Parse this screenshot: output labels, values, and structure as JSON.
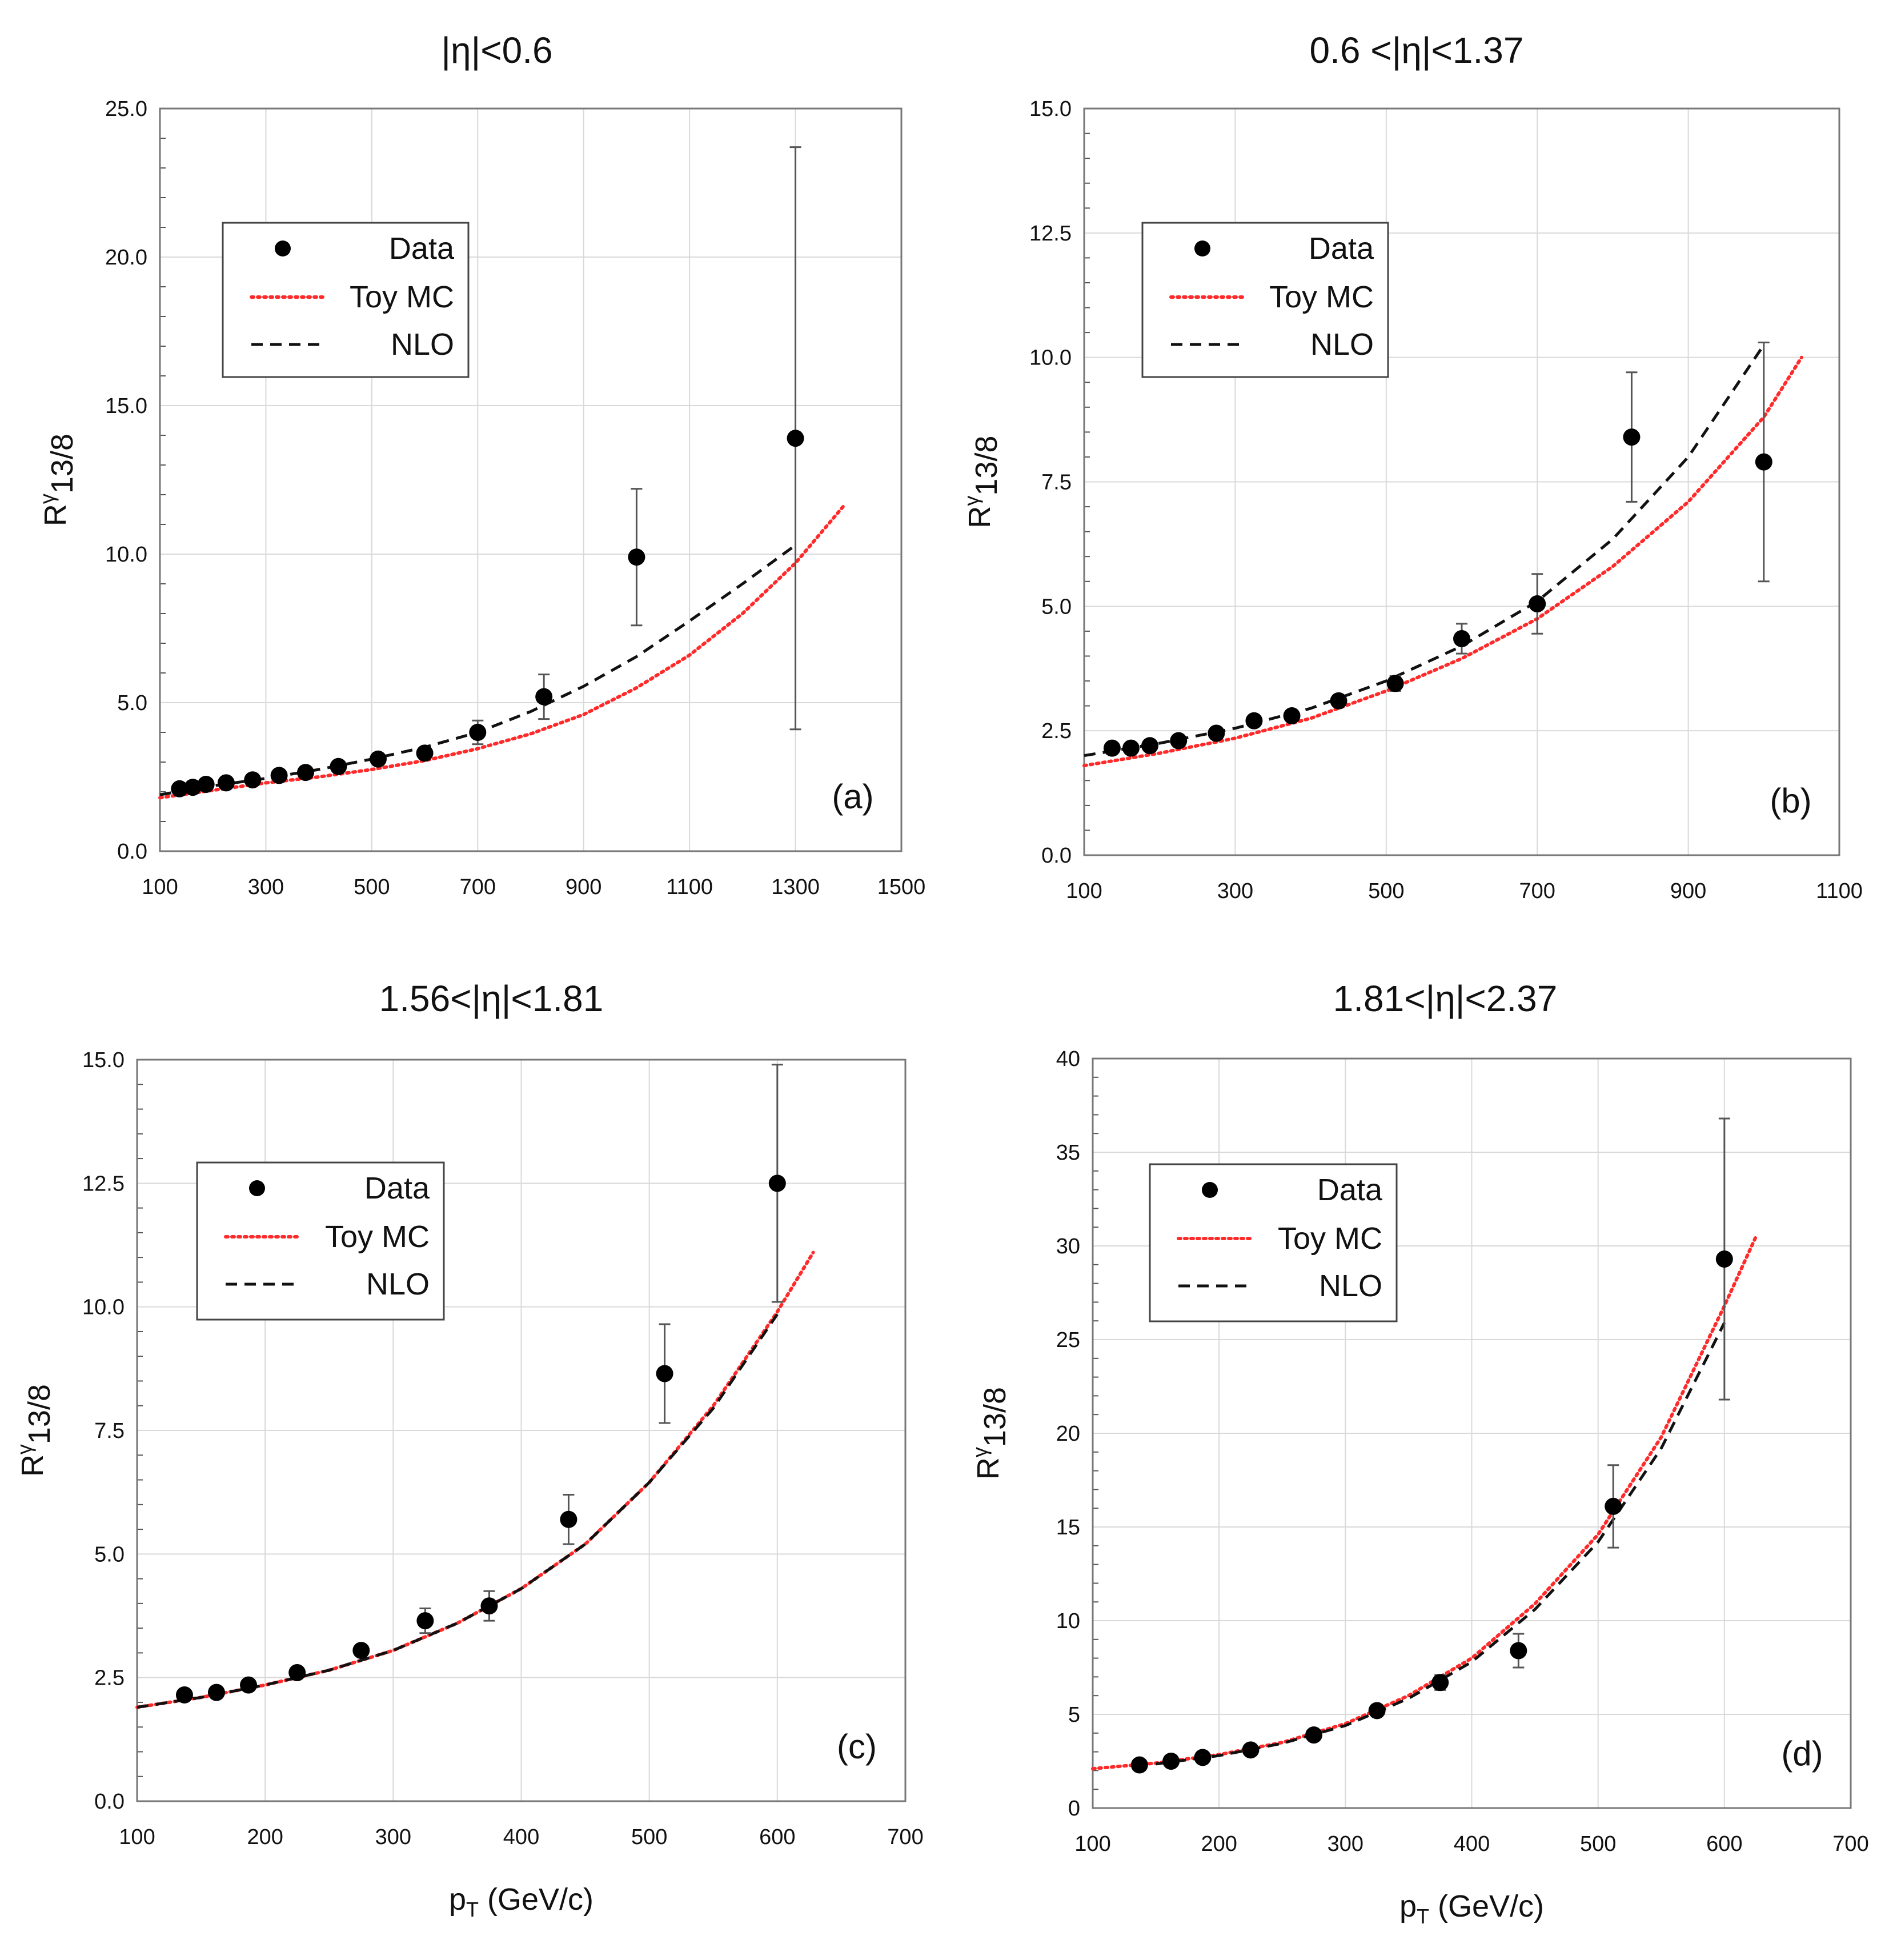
{
  "figure": {
    "xlabel": "p_T (GeV/c)"
  },
  "chart_data": [
    {
      "type": "scatter",
      "title": "|η|<0.6",
      "panel_label": "(a)",
      "xlabel": "",
      "ylabel": "Rγ13/8",
      "xlim": [
        100,
        1500
      ],
      "ylim": [
        0,
        25
      ],
      "xticks": [
        "100",
        "300",
        "500",
        "700",
        "900",
        "1100",
        "1300",
        "1500"
      ],
      "yticks": [
        "0.0",
        "5.0",
        "10.0",
        "15.0",
        "20.0",
        "25.0"
      ],
      "grid": true,
      "legend": {
        "position": "upper-left",
        "entries": [
          "Data",
          "Toy MC",
          "NLO"
        ]
      },
      "series": [
        {
          "name": "Data",
          "kind": "points-with-errors",
          "x": [
            137,
            162,
            187,
            225,
            275,
            325,
            375,
            437,
            512,
            600,
            700,
            825,
            1000,
            1300
          ],
          "y": [
            2.1,
            2.15,
            2.25,
            2.3,
            2.4,
            2.55,
            2.65,
            2.85,
            3.1,
            3.3,
            4.0,
            5.2,
            9.9,
            13.9
          ],
          "err_low": [
            0.05,
            0.05,
            0.05,
            0.05,
            0.05,
            0.05,
            0.05,
            0.1,
            0.1,
            0.15,
            0.4,
            0.75,
            2.3,
            9.8
          ],
          "err_high": [
            0.05,
            0.05,
            0.05,
            0.05,
            0.05,
            0.05,
            0.05,
            0.1,
            0.1,
            0.15,
            0.4,
            0.75,
            2.3,
            9.8
          ]
        },
        {
          "name": "Toy MC",
          "kind": "dotted-line",
          "x": [
            100,
            200,
            300,
            400,
            500,
            600,
            700,
            800,
            900,
            1000,
            1100,
            1200,
            1300,
            1390
          ],
          "y": [
            1.8,
            2.05,
            2.3,
            2.5,
            2.75,
            3.05,
            3.45,
            3.95,
            4.6,
            5.5,
            6.6,
            8.0,
            9.7,
            11.6
          ]
        },
        {
          "name": "NLO",
          "kind": "dashed-line",
          "x": [
            100,
            200,
            300,
            400,
            500,
            600,
            700,
            800,
            900,
            1000,
            1100,
            1200,
            1300
          ],
          "y": [
            1.9,
            2.2,
            2.45,
            2.75,
            3.1,
            3.5,
            4.0,
            4.7,
            5.55,
            6.55,
            7.75,
            9.0,
            10.3
          ]
        }
      ]
    },
    {
      "type": "scatter",
      "title": "0.6 <|η|<1.37",
      "panel_label": "(b)",
      "xlabel": "",
      "ylabel": "Rγ13/8",
      "xlim": [
        100,
        1100
      ],
      "ylim": [
        0,
        15
      ],
      "xticks": [
        "100",
        "300",
        "500",
        "700",
        "900",
        "1100"
      ],
      "yticks": [
        "0.0",
        "2.5",
        "5.0",
        "7.5",
        "10.0",
        "12.5",
        "15.0"
      ],
      "grid": true,
      "legend": {
        "position": "upper-left",
        "entries": [
          "Data",
          "Toy MC",
          "NLO"
        ]
      },
      "series": [
        {
          "name": "Data",
          "kind": "points-with-errors",
          "x": [
            137,
            162,
            187,
            225,
            275,
            325,
            375,
            437,
            512,
            600,
            700,
            825,
            1000
          ],
          "y": [
            2.15,
            2.15,
            2.2,
            2.3,
            2.45,
            2.7,
            2.8,
            3.1,
            3.45,
            4.35,
            5.05,
            8.4,
            7.9
          ],
          "err_low": [
            0.05,
            0.05,
            0.05,
            0.05,
            0.05,
            0.05,
            0.05,
            0.1,
            0.15,
            0.3,
            0.6,
            1.3,
            2.4
          ],
          "err_high": [
            0.05,
            0.05,
            0.05,
            0.05,
            0.05,
            0.05,
            0.05,
            0.1,
            0.15,
            0.3,
            0.6,
            1.3,
            2.4
          ]
        },
        {
          "name": "Toy MC",
          "kind": "dotted-line",
          "x": [
            100,
            200,
            300,
            400,
            500,
            600,
            700,
            800,
            900,
            1000,
            1050
          ],
          "y": [
            1.8,
            2.05,
            2.35,
            2.75,
            3.3,
            3.95,
            4.75,
            5.8,
            7.1,
            8.8,
            10.0
          ]
        },
        {
          "name": "NLO",
          "kind": "dashed-line",
          "x": [
            100,
            200,
            300,
            400,
            500,
            600,
            700,
            800,
            900,
            1000
          ],
          "y": [
            2.0,
            2.25,
            2.55,
            2.95,
            3.5,
            4.2,
            5.1,
            6.35,
            8.0,
            10.25
          ]
        }
      ]
    },
    {
      "type": "scatter",
      "title": "1.56<|η|<1.81",
      "panel_label": "(c)",
      "xlabel": "p_T (GeV/c)",
      "ylabel": "Rγ13/8",
      "xlim": [
        100,
        700
      ],
      "ylim": [
        0,
        15
      ],
      "xticks": [
        "100",
        "200",
        "300",
        "400",
        "500",
        "600",
        "700"
      ],
      "yticks": [
        "0.0",
        "2.5",
        "5.0",
        "7.5",
        "10.0",
        "12.5",
        "15.0"
      ],
      "grid": true,
      "legend": {
        "position": "upper-left",
        "entries": [
          "Data",
          "Toy MC",
          "NLO"
        ]
      },
      "series": [
        {
          "name": "Data",
          "kind": "points-with-errors",
          "x": [
            137,
            162,
            187,
            225,
            275,
            325,
            375,
            437,
            512,
            600
          ],
          "y": [
            2.15,
            2.2,
            2.35,
            2.6,
            3.05,
            3.65,
            3.95,
            5.7,
            8.65,
            12.5
          ],
          "err_low": [
            0.05,
            0.05,
            0.05,
            0.1,
            0.1,
            0.25,
            0.3,
            0.5,
            1.0,
            2.4
          ],
          "err_high": [
            0.05,
            0.05,
            0.05,
            0.1,
            0.1,
            0.25,
            0.3,
            0.5,
            1.0,
            2.4
          ]
        },
        {
          "name": "Toy MC",
          "kind": "dotted-line",
          "x": [
            100,
            150,
            200,
            250,
            300,
            350,
            400,
            450,
            500,
            550,
            600,
            628
          ],
          "y": [
            1.9,
            2.1,
            2.35,
            2.65,
            3.05,
            3.6,
            4.3,
            5.2,
            6.45,
            8.0,
            9.9,
            11.1
          ]
        },
        {
          "name": "NLO",
          "kind": "dashed-line",
          "x": [
            100,
            150,
            200,
            250,
            300,
            350,
            400,
            450,
            500,
            550,
            600
          ],
          "y": [
            1.9,
            2.1,
            2.35,
            2.65,
            3.05,
            3.6,
            4.3,
            5.2,
            6.45,
            7.95,
            9.85
          ]
        }
      ]
    },
    {
      "type": "scatter",
      "title": "1.81<|η|<2.37",
      "panel_label": "(d)",
      "xlabel": "p_T (GeV/c)",
      "ylabel": "Rγ13/8",
      "xlim": [
        100,
        700
      ],
      "ylim": [
        0,
        40
      ],
      "xticks": [
        "100",
        "200",
        "300",
        "400",
        "500",
        "600",
        "700"
      ],
      "yticks": [
        "0",
        "5",
        "10",
        "15",
        "20",
        "25",
        "30",
        "35",
        "40"
      ],
      "grid": true,
      "legend": {
        "position": "upper-left",
        "entries": [
          "Data",
          "Toy MC",
          "NLO"
        ]
      },
      "series": [
        {
          "name": "Data",
          "kind": "points-with-errors",
          "x": [
            137,
            162,
            187,
            225,
            275,
            325,
            375,
            437,
            512,
            600
          ],
          "y": [
            2.3,
            2.5,
            2.7,
            3.1,
            3.9,
            5.2,
            6.7,
            8.4,
            16.1,
            29.3
          ],
          "err_low": [
            0.1,
            0.1,
            0.1,
            0.1,
            0.2,
            0.3,
            0.4,
            0.9,
            2.2,
            7.5
          ],
          "err_high": [
            0.1,
            0.1,
            0.1,
            0.1,
            0.2,
            0.3,
            0.4,
            0.9,
            2.2,
            7.5
          ]
        },
        {
          "name": "Toy MC",
          "kind": "dotted-line",
          "x": [
            100,
            150,
            200,
            250,
            300,
            350,
            400,
            450,
            500,
            550,
            600,
            625
          ],
          "y": [
            2.1,
            2.4,
            2.85,
            3.5,
            4.5,
            6.0,
            8.0,
            10.9,
            14.6,
            19.8,
            26.8,
            30.5
          ]
        },
        {
          "name": "NLO",
          "kind": "dashed-line",
          "x": [
            150,
            200,
            250,
            300,
            350,
            400,
            450,
            500,
            550,
            600
          ],
          "y": [
            2.35,
            2.8,
            3.45,
            4.4,
            5.85,
            7.8,
            10.6,
            14.2,
            19.2,
            25.9
          ]
        }
      ]
    }
  ]
}
